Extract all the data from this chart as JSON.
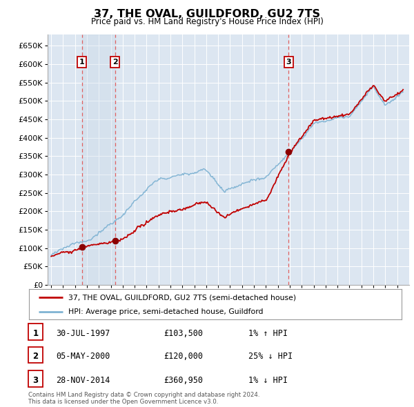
{
  "title": "37, THE OVAL, GUILDFORD, GU2 7TS",
  "subtitle": "Price paid vs. HM Land Registry's House Price Index (HPI)",
  "legend_label_red": "37, THE OVAL, GUILDFORD, GU2 7TS (semi-detached house)",
  "legend_label_blue": "HPI: Average price, semi-detached house, Guildford",
  "footer": "Contains HM Land Registry data © Crown copyright and database right 2024.\nThis data is licensed under the Open Government Licence v3.0.",
  "sales": [
    {
      "num": 1,
      "date": "30-JUL-1997",
      "price": 103500,
      "year": 1997.58,
      "pct": "1%",
      "dir": "↑"
    },
    {
      "num": 2,
      "date": "05-MAY-2000",
      "price": 120000,
      "year": 2000.35,
      "pct": "25%",
      "dir": "↓"
    },
    {
      "num": 3,
      "date": "28-NOV-2014",
      "price": 360950,
      "year": 2014.91,
      "pct": "1%",
      "dir": "↓"
    }
  ],
  "ylim": [
    0,
    680000
  ],
  "yticks": [
    0,
    50000,
    100000,
    150000,
    200000,
    250000,
    300000,
    350000,
    400000,
    450000,
    500000,
    550000,
    600000,
    650000
  ],
  "xlim_start": 1994.7,
  "xlim_end": 2025.0,
  "background_chart": "#dce6f1",
  "background_fig": "#ffffff",
  "grid_color": "#ffffff",
  "red_line_color": "#c00000",
  "blue_line_color": "#7fb3d3",
  "sale_marker_color": "#8b0000",
  "vline_color": "#e06060",
  "box_color": "#c00000",
  "shade_color": "#c8d8e8"
}
